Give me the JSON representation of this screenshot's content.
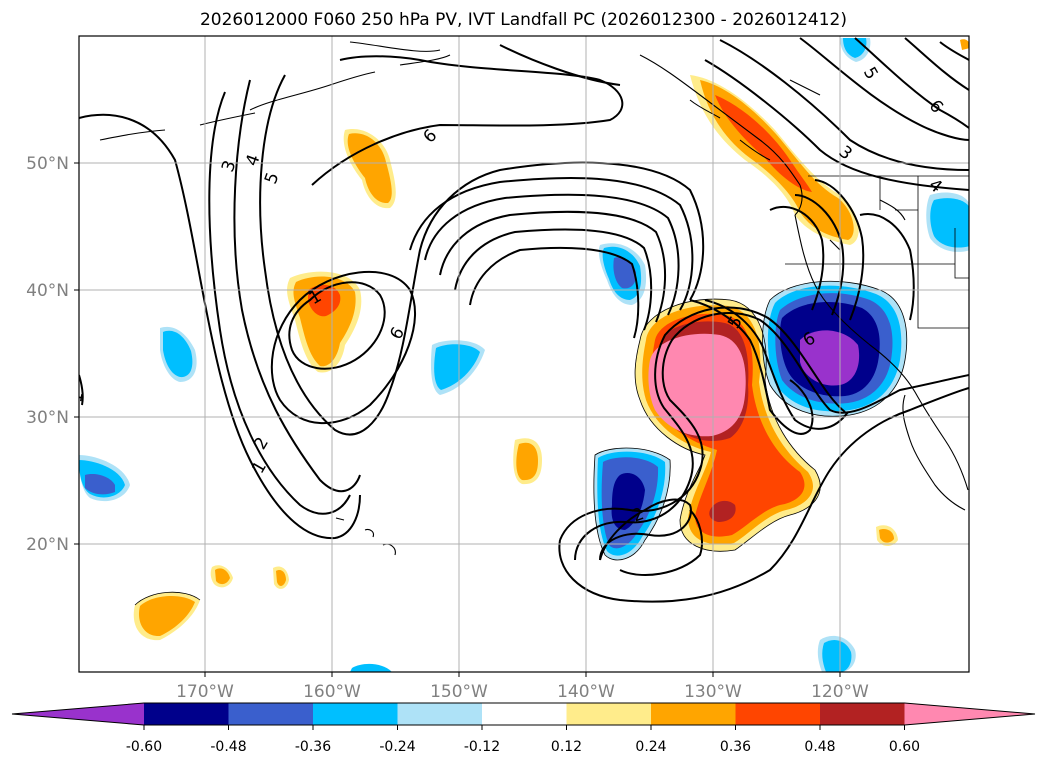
{
  "title": "2026012000 F060 250 hPa PV, IVT Landfall PC (2026012300 - 2026012412)",
  "map": {
    "lon_ticks": [
      "170°W",
      "160°W",
      "150°W",
      "140°W",
      "130°W",
      "120°W"
    ],
    "lat_ticks": [
      "50°N",
      "40°N",
      "30°N",
      "20°N"
    ],
    "contour_labels": [
      "3",
      "4",
      "5",
      "6",
      "1",
      "6",
      "2",
      "1",
      "6",
      "5",
      "5",
      "6",
      "3",
      "4",
      "2",
      "1"
    ]
  },
  "colorbar": {
    "colors": [
      "#9932cc",
      "#00008b",
      "#3a5fcd",
      "#00bfff",
      "#aee2f7",
      "#ffffff",
      "#ffec8b",
      "#ffa500",
      "#ff4500",
      "#b22222",
      "#ff88b0"
    ],
    "tick_labels": [
      "-0.60",
      "-0.48",
      "-0.36",
      "-0.24",
      "-0.12",
      "0.12",
      "0.24",
      "0.36",
      "0.48",
      "0.60"
    ]
  }
}
